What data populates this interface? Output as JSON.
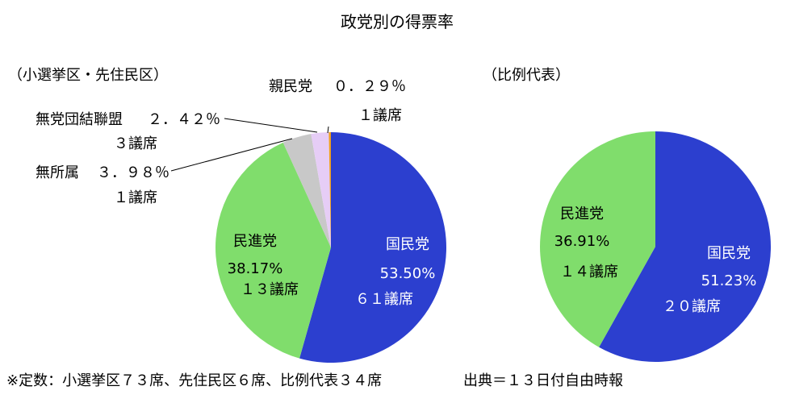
{
  "title": "政党別の得票率",
  "footnote": "※定数：小選挙区７３席、先住民区６席、比例代表３４席",
  "source": "出典＝１３日付自由時報",
  "colors": {
    "kmt": "#2c3fcf",
    "dpp": "#80dd6c",
    "ind": "#c8c8c8",
    "ntu": "#e6cdf6",
    "pfp": "#f0a020"
  },
  "chart_data": [
    {
      "type": "pie",
      "subtitle": "（小選挙区・先住民区）",
      "slices": [
        {
          "party": "国民党",
          "value": 53.5,
          "value_label": "53.50%",
          "seats_label": "６１議席",
          "color": "#2c3fcf"
        },
        {
          "party": "民進党",
          "value": 38.17,
          "value_label": "38.17%",
          "seats_label": "１３議席",
          "color": "#80dd6c"
        },
        {
          "party": "無所属",
          "value": 3.98,
          "value_label": "３．９８％",
          "seats_label": "１議席",
          "color": "#c8c8c8"
        },
        {
          "party": "無党団結聯盟",
          "value": 2.42,
          "value_label": "２．４２％",
          "seats_label": "３議席",
          "color": "#e6cdf6"
        },
        {
          "party": "親民党",
          "value": 0.29,
          "value_label": "０．２９％",
          "seats_label": "１議席",
          "color": "#f0a020"
        }
      ]
    },
    {
      "type": "pie",
      "subtitle": "（比例代表）",
      "slices": [
        {
          "party": "国民党",
          "value": 51.23,
          "value_label": "51.23%",
          "seats_label": "２０議席",
          "color": "#2c3fcf"
        },
        {
          "party": "民進党",
          "value": 36.91,
          "value_label": "36.91%",
          "seats_label": "１４議席",
          "color": "#80dd6c"
        }
      ]
    }
  ]
}
